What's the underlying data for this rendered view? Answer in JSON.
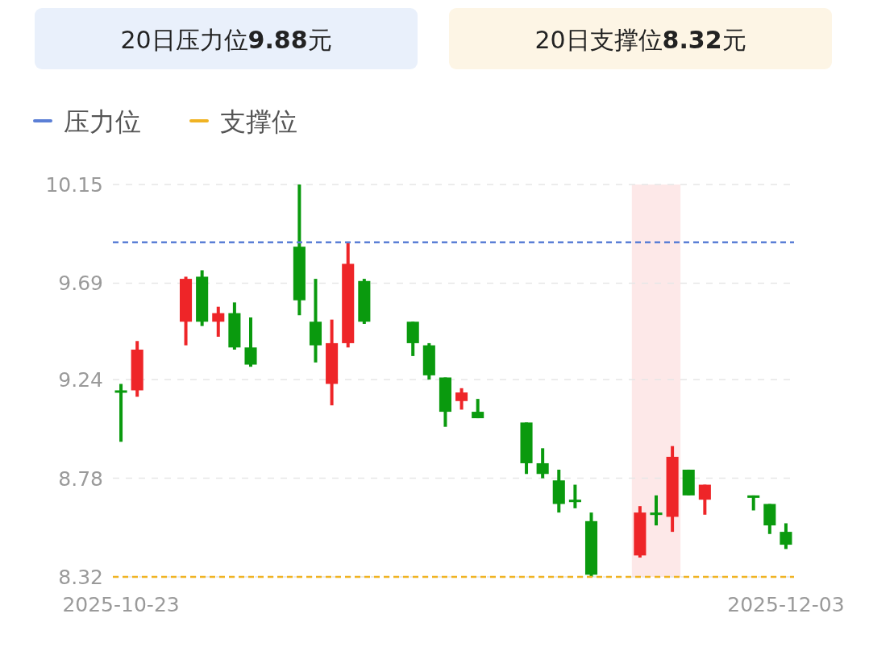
{
  "chart_data": {
    "type": "candlestick",
    "annotations": [
      "20日压力位**9.88**元",
      "20日支撑位**8.32**元"
    ],
    "x": [
      "2025-10-23",
      "2025-10-24",
      "2025-10-27",
      "2025-10-28",
      "2025-10-29",
      "2025-10-30",
      "2025-10-31",
      "2025-11-03",
      "2025-11-04",
      "2025-11-05",
      "2025-11-06",
      "2025-11-07",
      "2025-11-10",
      "2025-11-11",
      "2025-11-12",
      "2025-11-13",
      "2025-11-14",
      "2025-11-17",
      "2025-11-18",
      "2025-11-19",
      "2025-11-20",
      "2025-11-21",
      "2025-11-24",
      "2025-11-25",
      "2025-11-26",
      "2025-11-27",
      "2025-11-28",
      "2025-12-01",
      "2025-12-02",
      "2025-12-03"
    ],
    "ohlc": [
      [
        9.19,
        9.22,
        8.95,
        9.18
      ],
      [
        9.19,
        9.42,
        9.16,
        9.38
      ],
      [
        9.51,
        9.72,
        9.4,
        9.71
      ],
      [
        9.72,
        9.75,
        9.49,
        9.51
      ],
      [
        9.51,
        9.58,
        9.44,
        9.55
      ],
      [
        9.55,
        9.6,
        9.38,
        9.39
      ],
      [
        9.39,
        9.53,
        9.3,
        9.31
      ],
      [
        9.86,
        10.15,
        9.54,
        9.61
      ],
      [
        9.51,
        9.71,
        9.32,
        9.4
      ],
      [
        9.22,
        9.52,
        9.12,
        9.41
      ],
      [
        9.41,
        9.88,
        9.39,
        9.78
      ],
      [
        9.7,
        9.71,
        9.5,
        9.51
      ],
      [
        9.51,
        9.51,
        9.35,
        9.41
      ],
      [
        9.4,
        9.41,
        9.24,
        9.26
      ],
      [
        9.25,
        9.25,
        9.02,
        9.09
      ],
      [
        9.14,
        9.2,
        9.1,
        9.18
      ],
      [
        9.09,
        9.15,
        9.06,
        9.06
      ],
      [
        9.04,
        9.04,
        8.8,
        8.85
      ],
      [
        8.85,
        8.92,
        8.78,
        8.8
      ],
      [
        8.77,
        8.82,
        8.62,
        8.66
      ],
      [
        8.68,
        8.75,
        8.64,
        8.67
      ],
      [
        8.58,
        8.62,
        8.32,
        8.33
      ],
      [
        8.42,
        8.65,
        8.41,
        8.62
      ],
      [
        8.62,
        8.7,
        8.56,
        8.61
      ],
      [
        8.6,
        8.93,
        8.53,
        8.88
      ],
      [
        8.82,
        8.82,
        8.7,
        8.7
      ],
      [
        8.68,
        8.75,
        8.61,
        8.75
      ],
      [
        8.7,
        8.7,
        8.63,
        8.69
      ],
      [
        8.66,
        8.66,
        8.52,
        8.56
      ],
      [
        8.53,
        8.57,
        8.45,
        8.47
      ]
    ],
    "colors": [
      "#0a9a0e",
      "#ee2528",
      "#ee2528",
      "#0a9a0e",
      "#ee2528",
      "#0a9a0e",
      "#0a9a0e",
      "#0a9a0e",
      "#0a9a0e",
      "#ee2528",
      "#ee2528",
      "#0a9a0e",
      "#0a9a0e",
      "#0a9a0e",
      "#0a9a0e",
      "#ee2528",
      "#0a9a0e",
      "#0a9a0e",
      "#0a9a0e",
      "#0a9a0e",
      "#0a9a0e",
      "#0a9a0e",
      "#ee2528",
      "#0a9a0e",
      "#ee2528",
      "#0a9a0e",
      "#ee2528",
      "#0a9a0e",
      "#0a9a0e",
      "#0a9a0e"
    ],
    "ylim": [
      8.32,
      10.15
    ],
    "yticks": [
      8.32,
      8.78,
      9.24,
      9.69,
      10.15
    ],
    "xlim": [
      "2025-10-22T12:00",
      "2025-12-03T12:00"
    ],
    "xticks": [
      {
        "value": "2025-10-23",
        "label": "2025-10-23"
      },
      {
        "value": "2025-12-03",
        "label": "2025-12-03"
      }
    ],
    "grid": "y",
    "legend": "top left",
    "ref_lines": [
      {
        "axis": "y",
        "value": 9.88,
        "label": "压力位",
        "color": "#5b7fd6",
        "line_style": "dashed"
      },
      {
        "axis": "y",
        "value": 8.32,
        "label": "支撑位",
        "color": "#f0b323",
        "line_style": "dashed"
      }
    ],
    "bands": [
      {
        "axis": "x",
        "from": "2025-11-23T12:00",
        "to": "2025-11-26T12:00",
        "color": "#fde8e8"
      }
    ]
  }
}
